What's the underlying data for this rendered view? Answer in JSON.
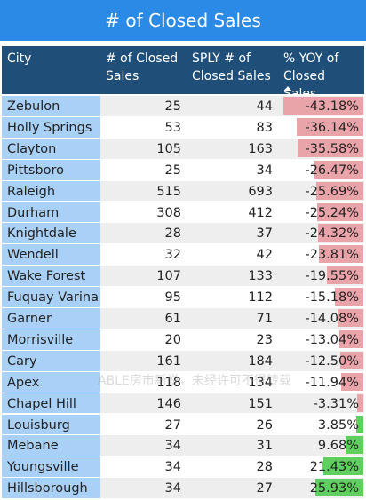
{
  "title": "# of Closed Sales",
  "table": {
    "headers": [
      "City",
      "# of Closed Sales",
      "SPLY # of Closed Sales",
      "% YOY of Closed Sales"
    ],
    "rows": [
      [
        "Zebulon",
        "25",
        "44",
        "-43.18%"
      ],
      [
        "Holly Springs",
        "53",
        "83",
        "-36.14%"
      ],
      [
        "Clayton",
        "105",
        "163",
        "-35.58%"
      ],
      [
        "Pittsboro",
        "25",
        "34",
        "-26.47%"
      ],
      [
        "Raleigh",
        "515",
        "693",
        "-25.69%"
      ],
      [
        "Durham",
        "308",
        "412",
        "-25.24%"
      ],
      [
        "Knightdale",
        "28",
        "37",
        "-24.32%"
      ],
      [
        "Wendell",
        "32",
        "42",
        "-23.81%"
      ],
      [
        "Wake Forest",
        "107",
        "133",
        "-19.55%"
      ],
      [
        "Fuquay Varina",
        "95",
        "112",
        "-15.18%"
      ],
      [
        "Garner",
        "61",
        "71",
        "-14.08%"
      ],
      [
        "Morrisville",
        "20",
        "23",
        "-13.04%"
      ],
      [
        "Cary",
        "161",
        "184",
        "-12.50%"
      ],
      [
        "Apex",
        "118",
        "134",
        "-11.94%"
      ],
      [
        "Chapel Hill",
        "146",
        "151",
        "-3.31%"
      ],
      [
        "Louisburg",
        "27",
        "26",
        "3.85%"
      ],
      [
        "Mebane",
        "34",
        "31",
        "9.68%"
      ],
      [
        "Youngsville",
        "34",
        "28",
        "21.43%"
      ],
      [
        "Hillsborough",
        "34",
        "27",
        "25.93%"
      ]
    ]
  },
  "watermark": "ABLE房市新说，未经许可不得转载"
}
